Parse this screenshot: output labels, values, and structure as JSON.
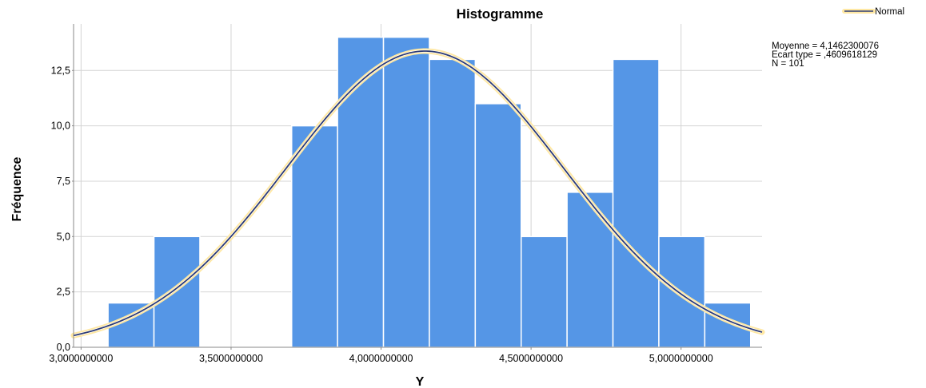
{
  "chart_data": {
    "type": "bar",
    "title": "Histogramme",
    "xlabel": "Y",
    "ylabel": "Fréquence",
    "xlim": [
      2.975,
      5.27
    ],
    "ylim": [
      0,
      14.6
    ],
    "grid": true,
    "x_ticks": [
      {
        "value": 3.0,
        "label": "3,0000000000"
      },
      {
        "value": 3.5,
        "label": "3,5000000000"
      },
      {
        "value": 4.0,
        "label": "4,0000000000"
      },
      {
        "value": 4.5,
        "label": "4,5000000000"
      },
      {
        "value": 5.0,
        "label": "5,0000000000"
      }
    ],
    "y_ticks": [
      {
        "value": 0,
        "label": "0,0"
      },
      {
        "value": 2.5,
        "label": "2,5"
      },
      {
        "value": 5.0,
        "label": "5,0"
      },
      {
        "value": 7.5,
        "label": "7,5"
      },
      {
        "value": 10.0,
        "label": "10,0"
      },
      {
        "value": 12.5,
        "label": "12,5"
      }
    ],
    "bin_width": 0.153,
    "bins": [
      {
        "start": 3.09,
        "count": 2
      },
      {
        "start": 3.243,
        "count": 5
      },
      {
        "start": 3.396,
        "count": 0
      },
      {
        "start": 3.549,
        "count": 0
      },
      {
        "start": 3.702,
        "count": 10
      },
      {
        "start": 3.855,
        "count": 14
      },
      {
        "start": 4.008,
        "count": 14
      },
      {
        "start": 4.161,
        "count": 13
      },
      {
        "start": 4.314,
        "count": 11
      },
      {
        "start": 4.467,
        "count": 5
      },
      {
        "start": 4.62,
        "count": 7
      },
      {
        "start": 4.773,
        "count": 13
      },
      {
        "start": 4.926,
        "count": 5
      },
      {
        "start": 5.079,
        "count": 2
      }
    ],
    "normal_curve": {
      "mean": 4.1462300076,
      "std": 0.4609618129,
      "n": 101
    },
    "legend": {
      "position": "top-right",
      "label": "Normal"
    },
    "stats_text": [
      "Moyenne = 4,1462300076",
      "Ecart type = ,4609618129",
      "N = 101"
    ],
    "colors": {
      "bar_fill": "#5596E6",
      "bar_stroke": "#ffffff",
      "curve": "#2E3C75",
      "curve_glow": "#FFE8A3",
      "grid": "#D4D4D4",
      "axis": "#888888"
    }
  }
}
